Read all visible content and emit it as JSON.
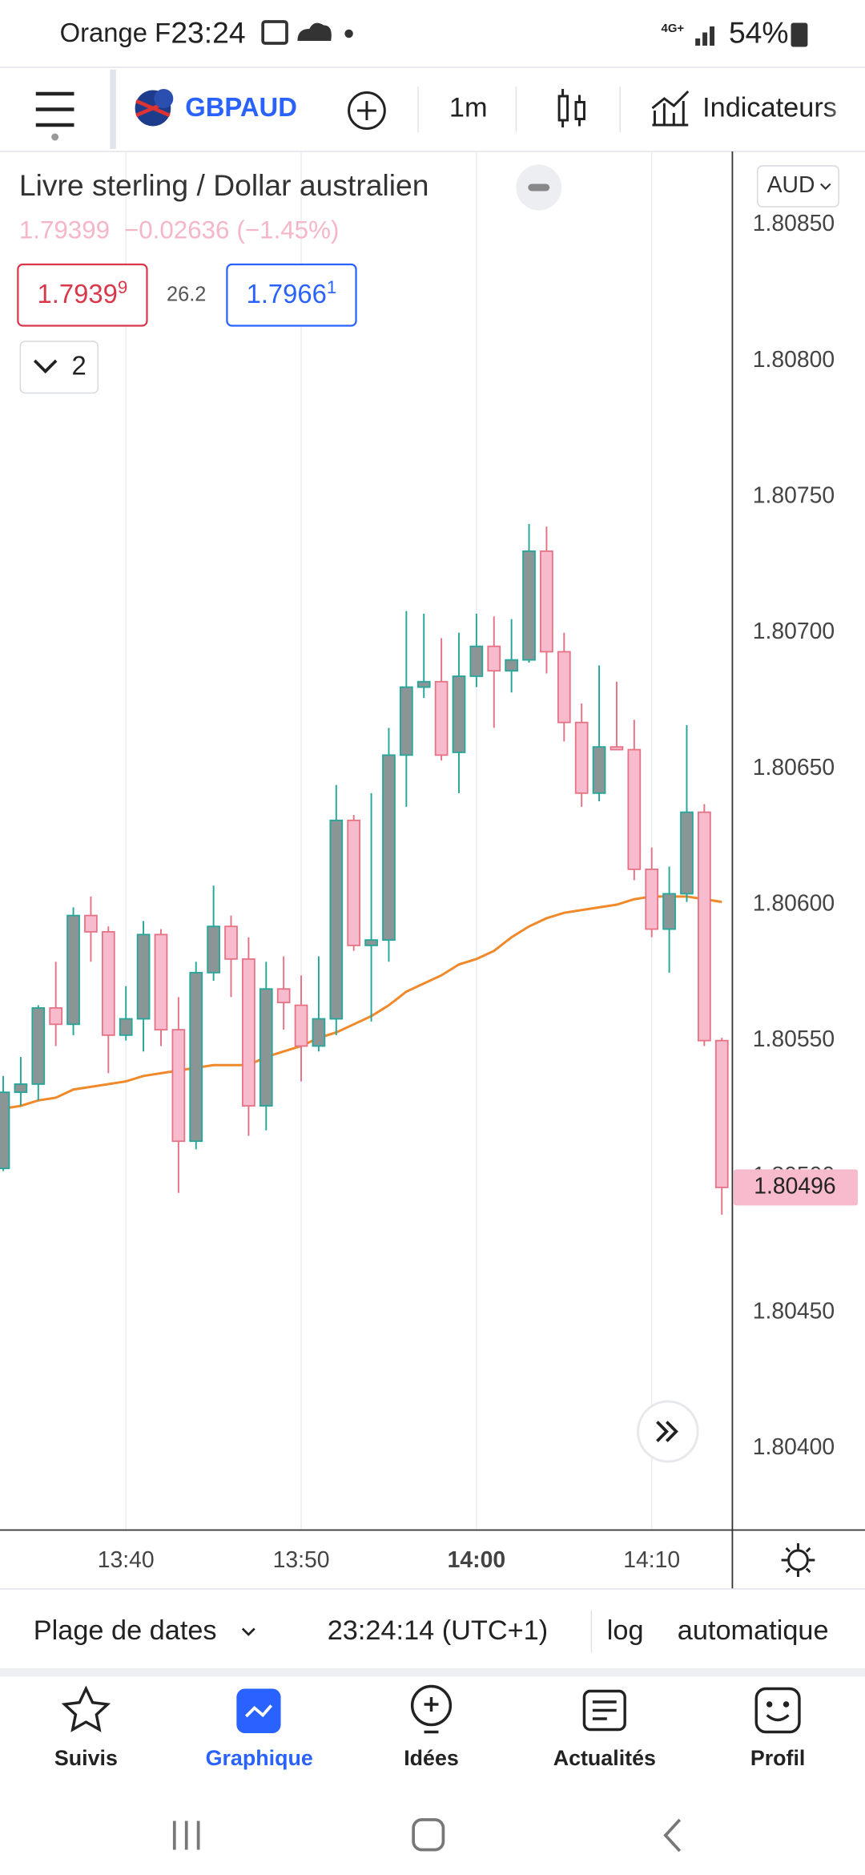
{
  "status_bar": {
    "carrier": "Orange F",
    "time": "23:24",
    "network": "4G+",
    "battery": "54%"
  },
  "toolbar": {
    "symbol": "GBPAUD",
    "interval": "1m",
    "indicators": "Indicateurs"
  },
  "header": {
    "title": "Livre sterling / Dollar australien",
    "last": "1.79399",
    "change": "−0.02636",
    "change_pct": "(−1.45%)",
    "bid": "1.7939",
    "bid_sup": "9",
    "spread": "26.2",
    "ask": "1.7966",
    "ask_sup": "1",
    "collapsed": "2",
    "currency": "AUD"
  },
  "chart_data": {
    "type": "candlestick",
    "x": [
      "13:33",
      "13:34",
      "13:35",
      "13:36",
      "13:37",
      "13:38",
      "13:39",
      "13:40",
      "13:41",
      "13:42",
      "13:43",
      "13:44",
      "13:45",
      "13:46",
      "13:47",
      "13:48",
      "13:49",
      "13:50",
      "13:51",
      "13:52",
      "13:53",
      "13:54",
      "13:55",
      "13:56",
      "13:57",
      "13:58",
      "13:59",
      "14:00",
      "14:01",
      "14:02",
      "14:03",
      "14:04",
      "14:05",
      "14:06",
      "14:07",
      "14:08",
      "14:09",
      "14:10",
      "14:11",
      "14:12",
      "14:13",
      "14:14"
    ],
    "open": [
      1.80503,
      1.80531,
      1.80534,
      1.80562,
      1.80556,
      1.80596,
      1.8059,
      1.80552,
      1.80558,
      1.80589,
      1.80554,
      1.80513,
      1.80575,
      1.80592,
      1.8058,
      1.80526,
      1.80569,
      1.80563,
      1.80548,
      1.80558,
      1.80631,
      1.80585,
      1.80587,
      1.80655,
      1.8068,
      1.80682,
      1.80656,
      1.80684,
      1.80695,
      1.80686,
      1.8069,
      1.8073,
      1.80693,
      1.80667,
      1.80641,
      1.80658,
      1.80657,
      1.80613,
      1.80591,
      1.80604,
      1.80634,
      1.8055
    ],
    "high": [
      1.80537,
      1.80544,
      1.80563,
      1.80579,
      1.80599,
      1.80603,
      1.80592,
      1.8057,
      1.80594,
      1.80591,
      1.80566,
      1.80579,
      1.80607,
      1.80596,
      1.80588,
      1.80579,
      1.80581,
      1.80574,
      1.80581,
      1.80644,
      1.80633,
      1.80641,
      1.80665,
      1.80708,
      1.80707,
      1.80698,
      1.807,
      1.80707,
      1.80706,
      1.80705,
      1.8074,
      1.80739,
      1.807,
      1.80674,
      1.80688,
      1.80682,
      1.80668,
      1.80621,
      1.80614,
      1.80666,
      1.80637,
      1.80551
    ],
    "low": [
      1.80502,
      1.80526,
      1.80528,
      1.80548,
      1.80552,
      1.80579,
      1.80538,
      1.8055,
      1.80546,
      1.80548,
      1.80494,
      1.8051,
      1.80572,
      1.80566,
      1.80515,
      1.80517,
      1.80554,
      1.80535,
      1.80546,
      1.80552,
      1.80583,
      1.80557,
      1.80579,
      1.80636,
      1.80676,
      1.80653,
      1.80641,
      1.8068,
      1.80665,
      1.80678,
      1.80689,
      1.80685,
      1.8066,
      1.80636,
      1.80638,
      1.80657,
      1.80609,
      1.80588,
      1.80575,
      1.80601,
      1.80548,
      1.80486
    ],
    "close": [
      1.80531,
      1.80534,
      1.80562,
      1.80556,
      1.80596,
      1.8059,
      1.80552,
      1.80558,
      1.80589,
      1.80554,
      1.80513,
      1.80575,
      1.80592,
      1.8058,
      1.80526,
      1.80569,
      1.80564,
      1.80548,
      1.80558,
      1.80631,
      1.80585,
      1.80587,
      1.80655,
      1.8068,
      1.80682,
      1.80655,
      1.80684,
      1.80695,
      1.80686,
      1.8069,
      1.8073,
      1.80693,
      1.80667,
      1.80641,
      1.80658,
      1.80657,
      1.80613,
      1.80591,
      1.80604,
      1.80634,
      1.8055,
      1.80496
    ],
    "up_color": "#26a69a",
    "up_fill": "#8a9696",
    "down_color": "#e57385",
    "down_fill": "#f8bbcd",
    "overlay": {
      "color": "#f0892a",
      "values": [
        1.80525,
        1.80526,
        1.80528,
        1.80529,
        1.80532,
        1.80533,
        1.80534,
        1.80535,
        1.80537,
        1.80538,
        1.80539,
        1.8054,
        1.80541,
        1.80541,
        1.80541,
        1.80544,
        1.80546,
        1.80548,
        1.80551,
        1.80553,
        1.80556,
        1.80559,
        1.80563,
        1.80568,
        1.80571,
        1.80574,
        1.80578,
        1.8058,
        1.80583,
        1.80588,
        1.80592,
        1.80595,
        1.80597,
        1.80598,
        1.80599,
        1.806,
        1.80602,
        1.80603,
        1.80603,
        1.80603,
        1.80602,
        1.80601
      ]
    },
    "last_price": 1.80496,
    "ylim": [
      1.8037,
      1.80877
    ],
    "yticks": [
      {
        "value": 1.804,
        "label": "1.80400"
      },
      {
        "value": 1.8045,
        "label": "1.80450"
      },
      {
        "value": 1.805,
        "label": "1.80500"
      },
      {
        "value": 1.8055,
        "label": "1.80550"
      },
      {
        "value": 1.806,
        "label": "1.80600"
      },
      {
        "value": 1.8065,
        "label": "1.80650"
      },
      {
        "value": 1.807,
        "label": "1.80700"
      },
      {
        "value": 1.8075,
        "label": "1.80750"
      },
      {
        "value": 1.808,
        "label": "1.80800"
      },
      {
        "value": 1.8085,
        "label": "1.80850"
      }
    ],
    "xticks": [
      "13:40",
      "13:50",
      "14:00",
      "14:10"
    ],
    "grid": true
  },
  "bottom_bar": {
    "range": "Plage de dates",
    "clock": "23:24:14 (UTC+1)",
    "log": "log",
    "auto": "automatique"
  },
  "nav": {
    "items": [
      "Suivis",
      "Graphique",
      "Idées",
      "Actualités",
      "Profil"
    ],
    "active": 1
  }
}
